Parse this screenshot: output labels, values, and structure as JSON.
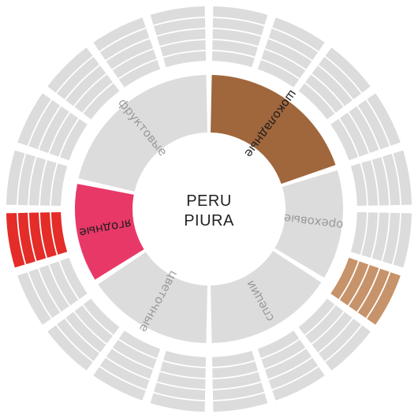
{
  "wheel": {
    "center": {
      "line1": "PERU",
      "line2": "PIURA"
    },
    "colors": {
      "background": "#ffffff",
      "segment_default": "#dcdcdc",
      "label_default": "#9a9a9a",
      "label_highlight": "#1e1e1e",
      "chocolate": "#a0663c",
      "chocolate_ring": "#c7936a",
      "berry": "#e83868",
      "berry_ring": "#e42c28"
    },
    "inner_segments": [
      {
        "id": "chocolate",
        "label": "шоколадные",
        "highlighted": true
      },
      {
        "id": "nutty",
        "label": "ореховые",
        "highlighted": false
      },
      {
        "id": "spicy",
        "label": "специи",
        "highlighted": false
      },
      {
        "id": "floral",
        "label": "цветочные",
        "highlighted": false
      },
      {
        "id": "berry",
        "label": "ягодные",
        "highlighted": true
      },
      {
        "id": "fruity",
        "label": "фруктовые",
        "highlighted": false
      }
    ],
    "outer_highlighted_groups": [
      {
        "parent": "chocolate",
        "color_key": "chocolate_ring"
      },
      {
        "parent": "berry",
        "color_key": "berry_ring"
      }
    ]
  }
}
